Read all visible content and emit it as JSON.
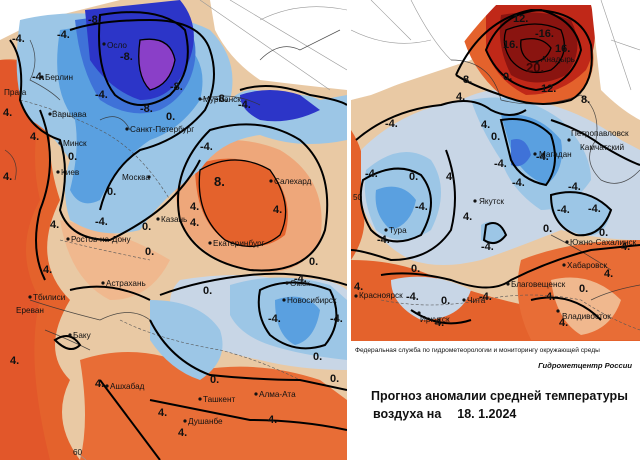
{
  "caption": {
    "organization": "Федеральная служба по гидрометеорологии и мониторингу окружающей среды",
    "center": "Гидрометцентр России",
    "title_line1": "Прогноз аномалии средней температуры",
    "title_line2_prefix": "воздуха на",
    "date": "18. 1.2024"
  },
  "grid_labels": {
    "lat50": "50",
    "lat60": "60"
  },
  "colors": {
    "very_cold": "#2c35c8",
    "cold_deep": "#3f72d8",
    "cold": "#5aa0e0",
    "cool": "#9cc6e6",
    "neutral_cool": "#c8d6e6",
    "neutral_warm": "#e9c9a4",
    "warm": "#f0a072",
    "hot": "#e4622c",
    "very_hot": "#c02818",
    "extreme": "#8a1410",
    "purple": "#8a3fc8"
  },
  "west_cities": [
    "Осло",
    "Берлин",
    "Прага",
    "Варшава",
    "Минск",
    "Киев",
    "Санкт-Петербург",
    "Москва",
    "Мурманск",
    "Салехард",
    "Казань",
    "Ростов-на-Дону",
    "Екатеринбург",
    "Астрахань",
    "Тбилиси",
    "Ереван",
    "Баку",
    "Омск",
    "Новосибирск",
    "Ашхабад",
    "Ташкент",
    "Алма-Ата",
    "Душанбе"
  ],
  "east_cities": [
    "Анадырь",
    "Петропавловск",
    "Камчатский",
    "Магадан",
    "Якутск",
    "Тура",
    "Южно-Сахалинск",
    "Хабаровск",
    "Благовещенск",
    "Красноярск",
    "Чита",
    "Иркутск",
    "Владивосток"
  ],
  "west_contours": [
    "-8.",
    "-4.",
    "-4.",
    "-4.",
    "-8.",
    "-8.",
    "-4.",
    "-8.",
    "-8.",
    "-4.",
    "-4.",
    "0.",
    "4.",
    "4.",
    "0.",
    "4.",
    "0.",
    "-4.",
    "0.",
    "8.",
    "4.",
    "4.",
    "4.",
    "0.",
    "4.",
    "4.",
    "0.",
    "0.",
    "-4.",
    "-4.",
    "-4.",
    "0.",
    "0.",
    "4.",
    "4.",
    "4.",
    "4.",
    "4.",
    "0."
  ],
  "east_contours": [
    "12.",
    "-16.",
    "16.",
    "16.",
    "20.",
    "12.",
    "8.",
    "8.",
    "4.",
    "4.",
    "0.",
    "-4.",
    "-4.",
    "0.",
    "4.",
    "-4.",
    "-4.",
    "-4.",
    "-4.",
    "4.",
    "0.",
    "-4.",
    "-4.",
    "-4.",
    "-4.",
    "0.",
    "-4.",
    "0.",
    "4.",
    "-4.",
    "0.",
    "4.",
    "-4.",
    "0.",
    "0.",
    "4.",
    "4.",
    "4.",
    "4."
  ]
}
